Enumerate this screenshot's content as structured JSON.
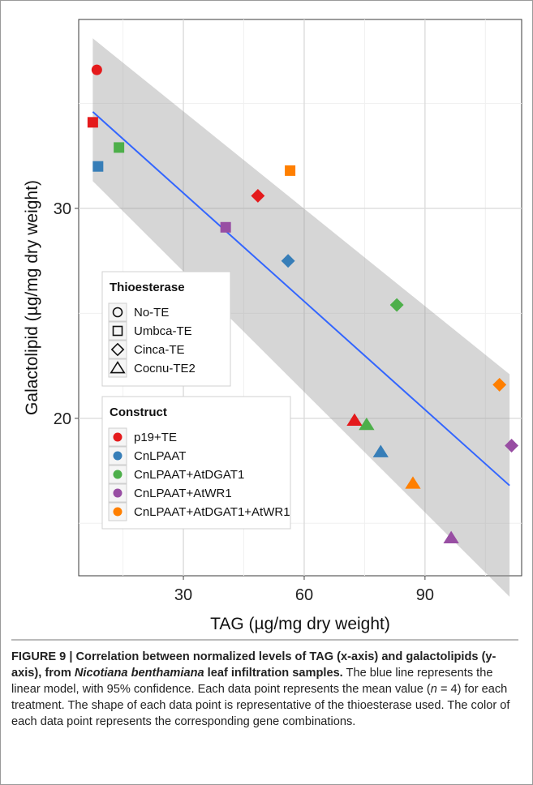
{
  "chart_data": {
    "type": "scatter",
    "xlabel": "TAG (µg/mg dry weight)",
    "ylabel": "Galactolipid (µg/mg dry weight)",
    "xlim": [
      4,
      114
    ],
    "ylim": [
      12.5,
      39
    ],
    "xticks": [
      30,
      60,
      90
    ],
    "yticks": [
      20,
      30
    ],
    "xtick_labels": [
      "30",
      "60",
      "90"
    ],
    "ytick_labels": [
      "20",
      "30"
    ],
    "grid": true,
    "fit": {
      "type": "linear",
      "label": "linear model, 95% confidence",
      "x_range": [
        7.5,
        111
      ],
      "line_y": [
        34.6,
        16.8
      ],
      "band_upper": [
        38.1,
        22.1
      ],
      "band_lower": [
        31.3,
        11.5
      ]
    },
    "shape_legend": {
      "title": "Thioesterase",
      "entries": [
        {
          "label": "No-TE",
          "shape": "circle"
        },
        {
          "label": "Umbca-TE",
          "shape": "square"
        },
        {
          "label": "Cinca-TE",
          "shape": "diamond"
        },
        {
          "label": "Cocnu-TE2",
          "shape": "triangle"
        }
      ]
    },
    "color_legend": {
      "title": "Construct",
      "entries": [
        {
          "label": "p19+TE",
          "color": "#e41a1c"
        },
        {
          "label": "CnLPAAT",
          "color": "#377eb8"
        },
        {
          "label": "CnLPAAT+AtDGAT1",
          "color": "#4daf4a"
        },
        {
          "label": "CnLPAAT+AtWR1",
          "color": "#984ea3"
        },
        {
          "label": "CnLPAAT+AtDGAT1+AtWR1",
          "color": "#ff7f00"
        }
      ]
    },
    "points": [
      {
        "x": 8.5,
        "y": 36.6,
        "shape": "circle",
        "construct": "p19+TE"
      },
      {
        "x": 7.5,
        "y": 34.1,
        "shape": "square",
        "construct": "p19+TE"
      },
      {
        "x": 8.8,
        "y": 32.0,
        "shape": "square",
        "construct": "CnLPAAT"
      },
      {
        "x": 14.0,
        "y": 32.9,
        "shape": "square",
        "construct": "CnLPAAT+AtDGAT1"
      },
      {
        "x": 56.5,
        "y": 31.8,
        "shape": "square",
        "construct": "CnLPAAT+AtDGAT1+AtWR1"
      },
      {
        "x": 48.5,
        "y": 30.6,
        "shape": "diamond",
        "construct": "p19+TE"
      },
      {
        "x": 40.5,
        "y": 29.1,
        "shape": "square",
        "construct": "CnLPAAT+AtWR1"
      },
      {
        "x": 56.0,
        "y": 27.5,
        "shape": "diamond",
        "construct": "CnLPAAT"
      },
      {
        "x": 83.0,
        "y": 25.4,
        "shape": "diamond",
        "construct": "CnLPAAT+AtDGAT1"
      },
      {
        "x": 108.5,
        "y": 21.6,
        "shape": "diamond",
        "construct": "CnLPAAT+AtDGAT1+AtWR1"
      },
      {
        "x": 72.5,
        "y": 19.9,
        "shape": "triangle",
        "construct": "p19+TE"
      },
      {
        "x": 75.5,
        "y": 19.7,
        "shape": "triangle",
        "construct": "CnLPAAT+AtDGAT1"
      },
      {
        "x": 79.0,
        "y": 18.4,
        "shape": "triangle",
        "construct": "CnLPAAT"
      },
      {
        "x": 111.5,
        "y": 18.7,
        "shape": "diamond",
        "construct": "CnLPAAT+AtWR1"
      },
      {
        "x": 87.0,
        "y": 16.9,
        "shape": "triangle",
        "construct": "CnLPAAT+AtDGAT1+AtWR1"
      },
      {
        "x": 96.5,
        "y": 14.3,
        "shape": "triangle",
        "construct": "CnLPAAT+AtWR1"
      }
    ]
  },
  "caption": {
    "figure_label": "FIGURE 9 | Correlation between normalized levels of TAG (x-axis) and galactolipids (y-axis), from ",
    "species": "Nicotiana benthamiana",
    "bold_rest": " leaf infiltration samples.",
    "text1": " The blue line represents the linear model, with 95% confidence. Each data point represents the mean value (",
    "n_var": "n",
    "text2": " = 4) for each treatment. The shape of each data point is representative of the thioesterase used. The color of each data point represents the corresponding gene combinations."
  }
}
